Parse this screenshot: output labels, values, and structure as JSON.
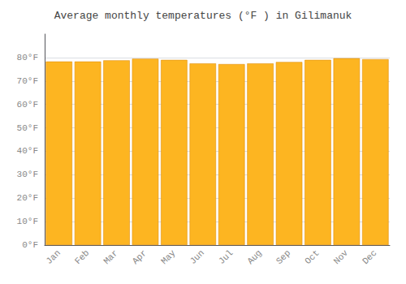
{
  "chart_data": {
    "type": "bar",
    "title": "Average monthly temperatures (°F ) in Gilimanuk",
    "categories": [
      "Jan",
      "Feb",
      "Mar",
      "Apr",
      "May",
      "Jun",
      "Jul",
      "Aug",
      "Sep",
      "Oct",
      "Nov",
      "Dec"
    ],
    "values": [
      78.3,
      78.3,
      78.8,
      79.5,
      79.0,
      77.5,
      77.2,
      77.5,
      78.1,
      79.0,
      79.7,
      79.3
    ],
    "color": "#FDB521",
    "ylim": [
      0,
      90
    ],
    "yticks": [
      {
        "value": 0,
        "label": "0°F"
      },
      {
        "value": 10,
        "label": "10°F"
      },
      {
        "value": 20,
        "label": "20°F"
      },
      {
        "value": 30,
        "label": "30°F"
      },
      {
        "value": 40,
        "label": "40°F"
      },
      {
        "value": 50,
        "label": "50°F"
      },
      {
        "value": 60,
        "label": "60°F"
      },
      {
        "value": 70,
        "label": "70°F"
      },
      {
        "value": 80,
        "label": "80°F"
      }
    ],
    "grid": true
  }
}
